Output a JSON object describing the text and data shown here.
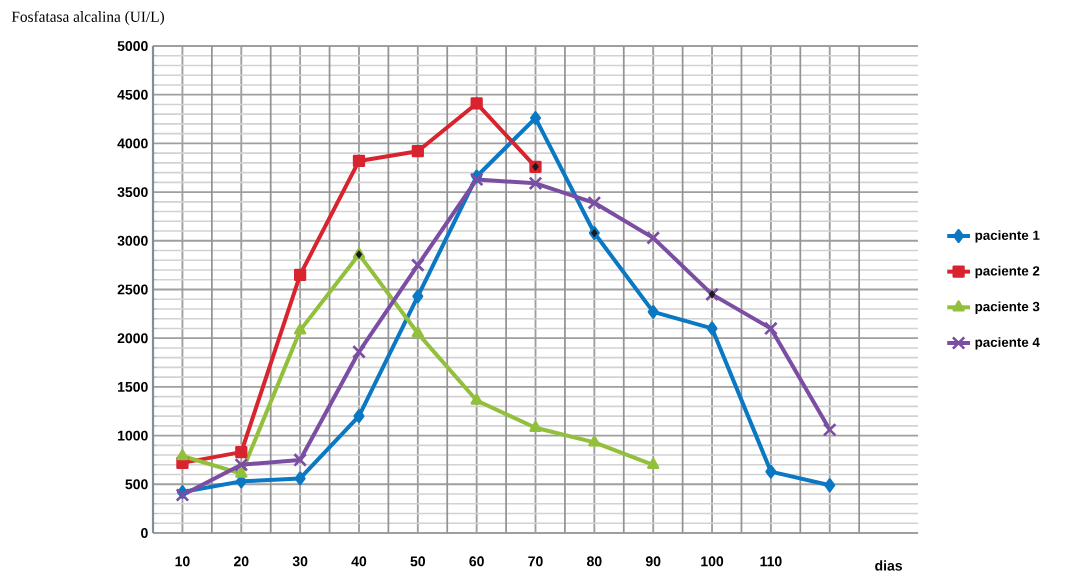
{
  "chart_data": {
    "type": "line",
    "ylabel": "Fosfatasa alcalina (UI/L)",
    "xlabel": "dias",
    "categories": [
      "10",
      "20",
      "30",
      "40",
      "50",
      "60",
      "70",
      "80",
      "90",
      "100",
      "110",
      null
    ],
    "series": [
      {
        "name": "paciente 1",
        "color": "#0a78c2",
        "marker": "diamond",
        "values": [
          420,
          530,
          560,
          1200,
          2430,
          3660,
          4260,
          3080,
          2270,
          2100,
          630,
          490
        ]
      },
      {
        "name": "paciente 2",
        "color": "#d8242e",
        "marker": "square",
        "values": [
          720,
          830,
          2650,
          3820,
          3920,
          4410,
          3760,
          null,
          null,
          null,
          null,
          null
        ]
      },
      {
        "name": "paciente 3",
        "color": "#93c03c",
        "marker": "triangle",
        "values": [
          790,
          610,
          2080,
          2860,
          2050,
          1360,
          1080,
          930,
          700,
          null,
          null,
          null
        ]
      },
      {
        "name": "paciente 4",
        "color": "#7b4ea3",
        "marker": "cross",
        "values": [
          390,
          700,
          750,
          1860,
          2750,
          3630,
          3590,
          3390,
          3030,
          2450,
          2100,
          1060
        ]
      },
      {
        "type": "scatter",
        "color": "#1a1a1a",
        "marker": "diamond",
        "x": [
          "40",
          "70",
          "80",
          "100"
        ],
        "values": [
          2860,
          3760,
          3080,
          2450
        ]
      }
    ],
    "ylim": [
      0,
      5000
    ],
    "yticks": [
      0,
      500,
      1000,
      1500,
      2000,
      2500,
      3000,
      3500,
      4000,
      4500,
      5000
    ],
    "grid": true,
    "legend": "right",
    "line_style": "solid"
  }
}
